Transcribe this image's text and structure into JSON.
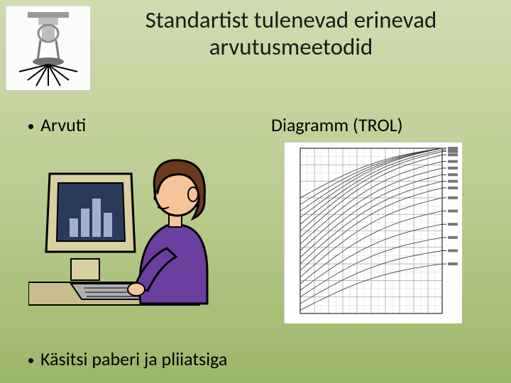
{
  "title_line1": "Standartist tulenevad erinevad",
  "title_line2": "arvutusmeetodid",
  "bullet1": "Arvuti",
  "bullet2_text": "Diagramm  (TROL)",
  "bullet3": "Käsitsi  paberi ja pliiatsiga",
  "colors": {
    "bg_top": "#d0dcb0",
    "bg_mid": "#b8cb8e",
    "bg_bot": "#9cb66a",
    "text": "#000000",
    "person_hair": "#6b3a1e",
    "person_skin": "#f7c49a",
    "person_shirt": "#6a3fa0",
    "monitor_body": "#d9cfa3",
    "monitor_screen": "#2a3b5a",
    "bars": "#9fb0d0",
    "keyboard": "#afafaf",
    "diagram_line": "#333333",
    "diagram_grid": "#cfcfcf"
  },
  "diagram_chart": {
    "type": "nomograph",
    "x_range": [
      0,
      10
    ],
    "y_range": [
      0,
      10
    ],
    "grid_major_step": 1,
    "grid_minor_step": 0.5,
    "curve_count": 18,
    "curve_start_y_at_x0": [
      0.2,
      0.6,
      1.0,
      1.4,
      1.8,
      2.2,
      2.6,
      3.0,
      3.4,
      3.8,
      4.2,
      4.6,
      5.0,
      5.4,
      5.8,
      6.2,
      6.6,
      7.0
    ],
    "curve_end_y_at_x10": [
      3.0,
      3.8,
      4.6,
      5.4,
      6.2,
      7.0,
      7.6,
      8.0,
      8.4,
      8.8,
      9.2,
      9.6,
      9.8,
      9.9,
      10,
      10,
      10,
      10
    ],
    "line_color": "#333333",
    "line_width": 0.8,
    "grid_color": "#cfcfcf",
    "background": "#ffffff"
  }
}
